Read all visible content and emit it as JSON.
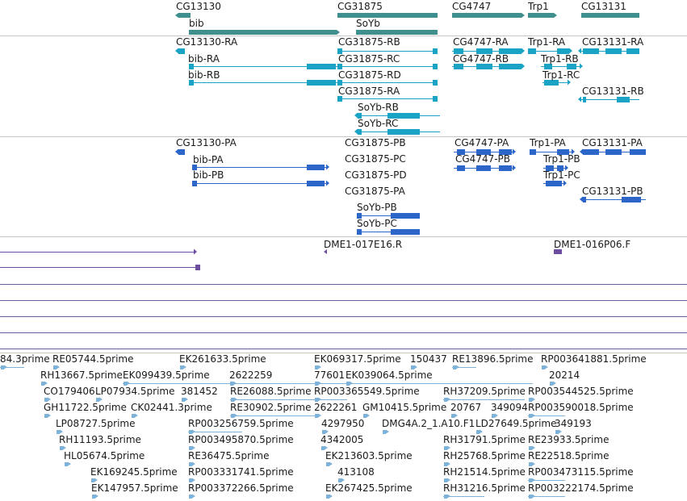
{
  "colors": {
    "gene": "#3f8f8f",
    "mrna": "#1ba3c6",
    "cds": "#2c66c9",
    "clone": "#6b4f9e",
    "est": "#7fb2d8",
    "divider": "#6b5a99"
  },
  "tracks": {
    "gene": {
      "items": [
        {
          "label": "CG13130"
        },
        {
          "label": "bib"
        },
        {
          "label": "CG31875"
        },
        {
          "label": "SoYb"
        },
        {
          "label": "CG4747"
        },
        {
          "label": "Trp1"
        },
        {
          "label": "CG13131"
        }
      ]
    },
    "mrna": {
      "items": [
        {
          "label": "CG13130-RA"
        },
        {
          "label": "bib-RA"
        },
        {
          "label": "bib-RB"
        },
        {
          "label": "CG31875-RB"
        },
        {
          "label": "CG31875-RC"
        },
        {
          "label": "CG31875-RD"
        },
        {
          "label": "CG31875-RA"
        },
        {
          "label": "SoYb-RB"
        },
        {
          "label": "SoYb-RC"
        },
        {
          "label": "CG4747-RA"
        },
        {
          "label": "CG4747-RB"
        },
        {
          "label": "Trp1-RA"
        },
        {
          "label": "Trp1-RB"
        },
        {
          "label": "Trp1-RC"
        },
        {
          "label": "CG13131-RA"
        },
        {
          "label": "CG13131-RB"
        }
      ]
    },
    "cds": {
      "items": [
        {
          "label": "CG13130-PA"
        },
        {
          "label": "bib-PA"
        },
        {
          "label": "bib-PB"
        },
        {
          "label": "CG31875-PB"
        },
        {
          "label": "CG31875-PC"
        },
        {
          "label": "CG31875-PD"
        },
        {
          "label": "CG31875-PA"
        },
        {
          "label": "SoYb-PB"
        },
        {
          "label": "SoYb-PC"
        },
        {
          "label": "CG4747-PA"
        },
        {
          "label": "CG4747-PB"
        },
        {
          "label": "Trp1-PA"
        },
        {
          "label": "Trp1-PB"
        },
        {
          "label": "Trp1-PC"
        },
        {
          "label": "CG13131-PA"
        },
        {
          "label": "CG13131-PB"
        }
      ]
    },
    "clone": {
      "items": [
        {
          "label": "DME1-017E16.R"
        },
        {
          "label": "DME1-016P06.F"
        }
      ]
    },
    "est": {
      "items": [
        {
          "label": "84.3prime"
        },
        {
          "label": "RE05744.5prime"
        },
        {
          "label": "EK261633.5prime"
        },
        {
          "label": "EK069317.5prime"
        },
        {
          "label": "150437"
        },
        {
          "label": "RE13896.5prime"
        },
        {
          "label": "RP003641881.5prime"
        },
        {
          "label": "RH13667.5prime"
        },
        {
          "label": "EK099439.5prime"
        },
        {
          "label": "2622259"
        },
        {
          "label": "77601"
        },
        {
          "label": "EK039064.5prime"
        },
        {
          "label": "20214"
        },
        {
          "label": "CO179406"
        },
        {
          "label": "LP07934.5prime"
        },
        {
          "label": "381452"
        },
        {
          "label": "RE26088.5prime"
        },
        {
          "label": "RP003365549.5prime"
        },
        {
          "label": "RH37209.5prime"
        },
        {
          "label": "RP003544525.5prime"
        },
        {
          "label": "GH11722.5prime"
        },
        {
          "label": "CK02441.3prime"
        },
        {
          "label": "RE30902.5prime"
        },
        {
          "label": "2622261"
        },
        {
          "label": "GM10415.5prime"
        },
        {
          "label": "20767"
        },
        {
          "label": "349094"
        },
        {
          "label": "RP003590018.5prime"
        },
        {
          "label": "LP08727.5prime"
        },
        {
          "label": "RP003256759.5prime"
        },
        {
          "label": "4297950"
        },
        {
          "label": "DMG4A.2_1.A10.F1"
        },
        {
          "label": "LD27649.5prime"
        },
        {
          "label": "349193"
        },
        {
          "label": "RH11193.5prime"
        },
        {
          "label": "RP003495870.5prime"
        },
        {
          "label": "4342005"
        },
        {
          "label": "RH31791.5prime"
        },
        {
          "label": "RE23933.5prime"
        },
        {
          "label": "HL05674.5prime"
        },
        {
          "label": "RE36475.5prime"
        },
        {
          "label": "EK213603.5prime"
        },
        {
          "label": "RH25768.5prime"
        },
        {
          "label": "RE22518.5prime"
        },
        {
          "label": "EK169245.5prime"
        },
        {
          "label": "RP003331741.5prime"
        },
        {
          "label": "413108"
        },
        {
          "label": "RH21514.5prime"
        },
        {
          "label": "RP003473115.5prime"
        },
        {
          "label": "EK147957.5prime"
        },
        {
          "label": "RP003372266.5prime"
        },
        {
          "label": "EK267425.5prime"
        },
        {
          "label": "RH31216.5prime"
        },
        {
          "label": "RP003222174.5prime"
        }
      ]
    }
  }
}
